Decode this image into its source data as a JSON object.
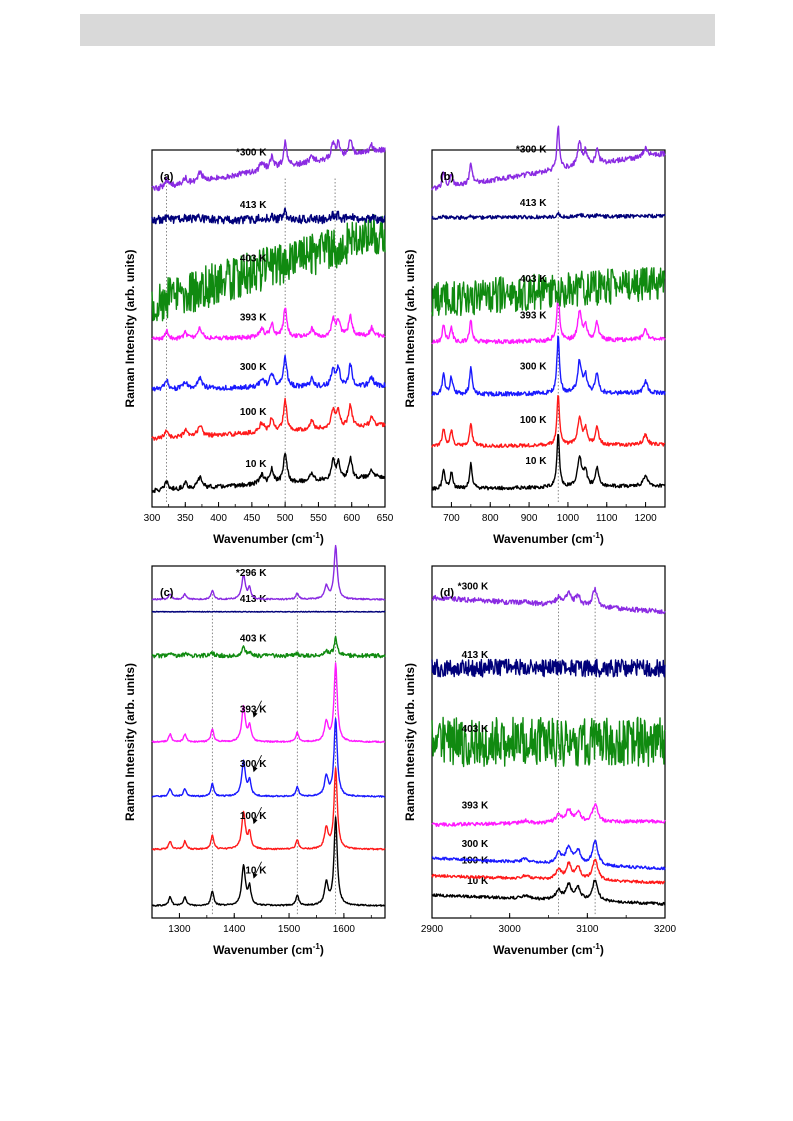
{
  "chart_data": [
    {
      "type": "line",
      "panel_label": "(a)",
      "xlabel": "Wavenumber (cm⁻¹)",
      "ylabel": "Raman Intensity (arb. units)",
      "xlim": [
        300,
        650
      ],
      "xticks": [
        300,
        350,
        400,
        450,
        500,
        550,
        600,
        650
      ],
      "reference_lines": [
        322,
        500,
        575
      ],
      "peaks": [
        [
          322,
          0.28,
          3
        ],
        [
          350,
          0.22,
          3
        ],
        [
          372,
          0.35,
          4
        ],
        [
          465,
          0.3,
          4
        ],
        [
          480,
          0.45,
          3
        ],
        [
          500,
          1.0,
          3
        ],
        [
          540,
          0.28,
          3
        ],
        [
          572,
          0.6,
          3
        ],
        [
          580,
          0.55,
          3
        ],
        [
          598,
          0.7,
          3
        ],
        [
          630,
          0.28,
          3
        ]
      ],
      "series": [
        {
          "name": "10 K",
          "color": "#000000",
          "offset": 0.045,
          "amp": 0.085,
          "slope": 0.04,
          "noise": 0.006
        },
        {
          "name": "100 K",
          "color": "#ff1a1a",
          "offset": 0.19,
          "amp": 0.085,
          "slope": 0.04,
          "noise": 0.006
        },
        {
          "name": "300 K",
          "color": "#1a1aff",
          "offset": 0.33,
          "amp": 0.085,
          "slope": 0.01,
          "noise": 0.007
        },
        {
          "name": "393 K",
          "color": "#ff1aff",
          "offset": 0.47,
          "amp": 0.08,
          "slope": 0.01,
          "noise": 0.006
        },
        {
          "name": "403 K",
          "color": "#108a10",
          "offset": 0.57,
          "amp": 0.0,
          "slope": 0.2,
          "noise": 0.06
        },
        {
          "name": "413 K",
          "color": "#00007a",
          "offset": 0.805,
          "amp": 0.02,
          "slope": 0.0,
          "noise": 0.012
        },
        {
          "name": "*300 K",
          "color": "#8a2be2",
          "offset": 0.89,
          "amp": 0.07,
          "slope": 0.11,
          "noise": 0.008
        }
      ]
    },
    {
      "type": "line",
      "panel_label": "(b)",
      "xlabel": "Wavenumber (cm⁻¹)",
      "ylabel": "Raman Intensity (arb. units)",
      "xlim": [
        650,
        1250
      ],
      "xticks": [
        700,
        800,
        900,
        1000,
        1100,
        1200
      ],
      "reference_lines": [
        975
      ],
      "peaks": [
        [
          680,
          0.35,
          4
        ],
        [
          700,
          0.3,
          4
        ],
        [
          750,
          0.45,
          4
        ],
        [
          975,
          1.0,
          4
        ],
        [
          1030,
          0.55,
          6
        ],
        [
          1045,
          0.3,
          5
        ],
        [
          1075,
          0.35,
          5
        ],
        [
          1200,
          0.2,
          6
        ]
      ],
      "series": [
        {
          "name": "10 K",
          "color": "#000000",
          "offset": 0.05,
          "amp": 0.15,
          "slope": 0.01,
          "noise": 0.005
        },
        {
          "name": "100 K",
          "color": "#ff1a1a",
          "offset": 0.17,
          "amp": 0.14,
          "slope": 0.005,
          "noise": 0.005
        },
        {
          "name": "300 K",
          "color": "#1a1aff",
          "offset": 0.315,
          "amp": 0.16,
          "slope": 0.005,
          "noise": 0.006
        },
        {
          "name": "393 K",
          "color": "#ff1aff",
          "offset": 0.46,
          "amp": 0.14,
          "slope": 0.01,
          "noise": 0.006
        },
        {
          "name": "403 K",
          "color": "#108a10",
          "offset": 0.58,
          "amp": 0.0,
          "slope": 0.05,
          "noise": 0.05
        },
        {
          "name": "413 K",
          "color": "#00007a",
          "offset": 0.81,
          "amp": 0.01,
          "slope": 0.005,
          "noise": 0.005
        },
        {
          "name": "*300 K",
          "color": "#8a2be2",
          "offset": 0.89,
          "amp": 0.12,
          "slope": 0.1,
          "noise": 0.007
        }
      ]
    },
    {
      "type": "line",
      "panel_label": "(c)",
      "xlabel": "Wavenumber (cm⁻¹)",
      "ylabel": "Raman Intensity (arb. units)",
      "xlim": [
        1250,
        1675
      ],
      "xticks": [
        1300,
        1400,
        1500,
        1600
      ],
      "reference_lines": [
        1360,
        1515,
        1585
      ],
      "arrow_annotations": [
        393,
        300,
        100,
        10
      ],
      "peaks": [
        [
          1283,
          0.1,
          3
        ],
        [
          1310,
          0.1,
          3
        ],
        [
          1360,
          0.17,
          3
        ],
        [
          1417,
          0.45,
          4
        ],
        [
          1428,
          0.2,
          3
        ],
        [
          1515,
          0.12,
          3
        ],
        [
          1568,
          0.25,
          4
        ],
        [
          1585,
          1.0,
          3.5
        ]
      ],
      "series": [
        {
          "name": "10 K",
          "color": "#000000",
          "offset": 0.035,
          "amp": 0.25,
          "slope": 0.0,
          "noise": 0.002
        },
        {
          "name": "100 K",
          "color": "#ff1a1a",
          "offset": 0.195,
          "amp": 0.23,
          "slope": 0.0,
          "noise": 0.002
        },
        {
          "name": "300 K",
          "color": "#1a1aff",
          "offset": 0.345,
          "amp": 0.22,
          "slope": 0.0,
          "noise": 0.002
        },
        {
          "name": "393 K",
          "color": "#ff1aff",
          "offset": 0.5,
          "amp": 0.22,
          "slope": 0.0,
          "noise": 0.002
        },
        {
          "name": "403 K",
          "color": "#108a10",
          "offset": 0.745,
          "amp": 0.05,
          "slope": 0.0,
          "noise": 0.006
        },
        {
          "name": "413 K",
          "color": "#00007a",
          "offset": 0.87,
          "amp": 0.0,
          "slope": 0.0,
          "noise": 0.001
        },
        {
          "name": "*296 K",
          "color": "#8a2be2",
          "offset": 0.905,
          "amp": 0.15,
          "slope": 0.0,
          "noise": 0.002
        }
      ]
    },
    {
      "type": "line",
      "panel_label": "(d)",
      "xlabel": "Wavenumber (cm⁻¹)",
      "ylabel": "Raman Intensity (arb. units)",
      "xlim": [
        2900,
        3200
      ],
      "xticks": [
        2900,
        3000,
        3100,
        3200
      ],
      "reference_lines": [
        3063,
        3110
      ],
      "peaks": [
        [
          3020,
          0.15,
          5
        ],
        [
          3063,
          0.45,
          4
        ],
        [
          3076,
          0.7,
          4
        ],
        [
          3088,
          0.55,
          4
        ],
        [
          3110,
          1.0,
          4
        ]
      ],
      "series": [
        {
          "name": "10 K",
          "color": "#000000",
          "offset": 0.065,
          "amp": 0.06,
          "slope": -0.025,
          "noise": 0.004
        },
        {
          "name": "100 K",
          "color": "#ff1a1a",
          "offset": 0.12,
          "amp": 0.06,
          "slope": -0.02,
          "noise": 0.004
        },
        {
          "name": "300 K",
          "color": "#1a1aff",
          "offset": 0.17,
          "amp": 0.07,
          "slope": -0.03,
          "noise": 0.004
        },
        {
          "name": "393 K",
          "color": "#ff1aff",
          "offset": 0.265,
          "amp": 0.05,
          "slope": 0.01,
          "noise": 0.005
        },
        {
          "name": "403 K",
          "color": "#108a10",
          "offset": 0.5,
          "amp": 0.0,
          "slope": 0.0,
          "noise": 0.07
        },
        {
          "name": "413 K",
          "color": "#00007a",
          "offset": 0.71,
          "amp": 0.0,
          "slope": 0.0,
          "noise": 0.025
        },
        {
          "name": "*300 K",
          "color": "#8a2be2",
          "offset": 0.91,
          "amp": 0.05,
          "slope": -0.04,
          "noise": 0.007
        }
      ]
    }
  ]
}
